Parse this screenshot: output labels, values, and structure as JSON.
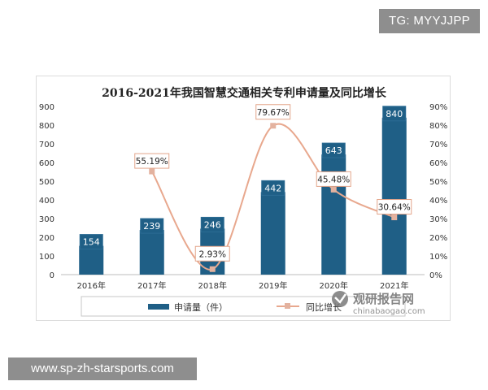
{
  "badges": {
    "top_right": "TG: MYYJJPP",
    "bottom_left": "www.sp-zh-starsports.com"
  },
  "watermark": {
    "name": "观研报告网",
    "url": "chinabaogao.com"
  },
  "colors": {
    "bar": "#1f5f86",
    "line": "#e8a88e",
    "marker": "#e3b29f",
    "label_border": "#2c6c94",
    "line_label_border": "#e3a58a"
  },
  "chart_data": {
    "type": "bar",
    "title": "2016-2021年我国智慧交通相关专利申请量及同比增长",
    "categories": [
      "2016年",
      "2017年",
      "2018年",
      "2019年",
      "2020年",
      "2021年"
    ],
    "series": [
      {
        "name": "申请量（件）",
        "type": "bar",
        "axis": "left",
        "values": [
          154,
          239,
          246,
          442,
          643,
          840
        ],
        "labels": [
          "154",
          "239",
          "246",
          "442",
          "643",
          "840"
        ]
      },
      {
        "name": "同比增长",
        "type": "line",
        "axis": "right",
        "values": [
          null,
          55.19,
          2.93,
          79.67,
          45.48,
          30.64
        ],
        "labels": [
          "",
          "55.19%",
          "2.93%",
          "79.67%",
          "45.48%",
          "30.64%"
        ]
      }
    ],
    "y_left": {
      "min": 0,
      "max": 900,
      "ticks": [
        "0",
        "100",
        "200",
        "300",
        "400",
        "500",
        "600",
        "700",
        "800",
        "900"
      ]
    },
    "y_right": {
      "min": 0,
      "max": 90,
      "ticks": [
        "0%",
        "10%",
        "20%",
        "30%",
        "40%",
        "50%",
        "60%",
        "70%",
        "80%",
        "90%"
      ]
    },
    "grid": false,
    "legend_position": "bottom"
  }
}
